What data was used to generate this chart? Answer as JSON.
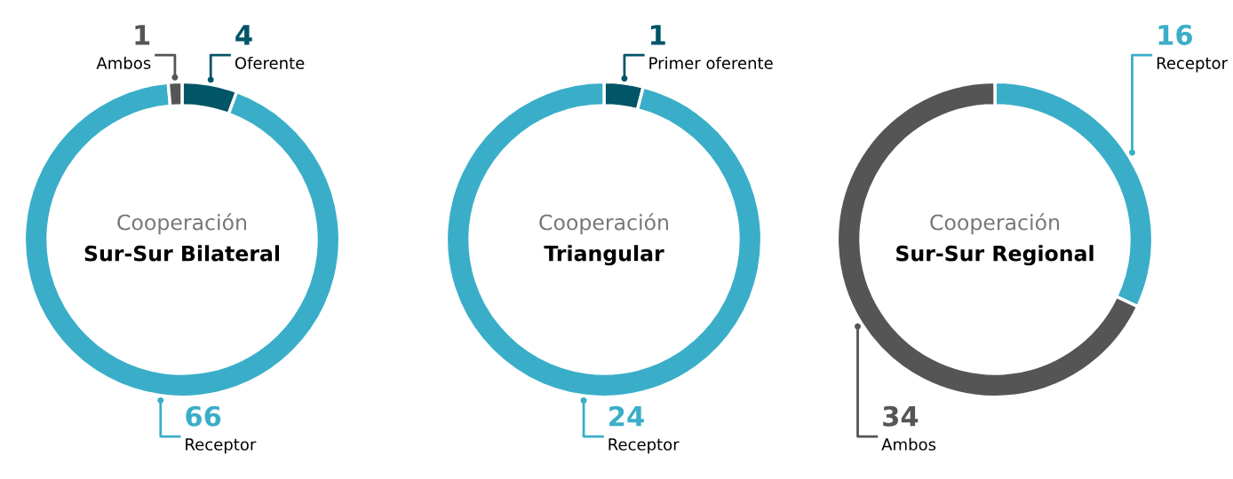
{
  "chart_data": [
    {
      "type": "donut",
      "title": "Cooperación",
      "subtitle": "Sur-Sur Bilateral",
      "categories": [
        "Oferente",
        "Receptor",
        "Ambos"
      ],
      "values": [
        4,
        66,
        1
      ],
      "colors": [
        "#005566",
        "#3aaec8",
        "#555555"
      ],
      "data_labels": true
    },
    {
      "type": "donut",
      "title": "Cooperación",
      "subtitle": "Triangular",
      "categories": [
        "Primer oferente",
        "Receptor"
      ],
      "values": [
        1,
        24
      ],
      "colors": [
        "#005566",
        "#3aaec8"
      ],
      "data_labels": true
    },
    {
      "type": "donut",
      "title": "Cooperación",
      "subtitle": "Sur-Sur Regional",
      "categories": [
        "Receptor",
        "Ambos"
      ],
      "values": [
        16,
        34
      ],
      "colors": [
        "#3aaec8",
        "#555555"
      ],
      "data_labels": true
    }
  ]
}
